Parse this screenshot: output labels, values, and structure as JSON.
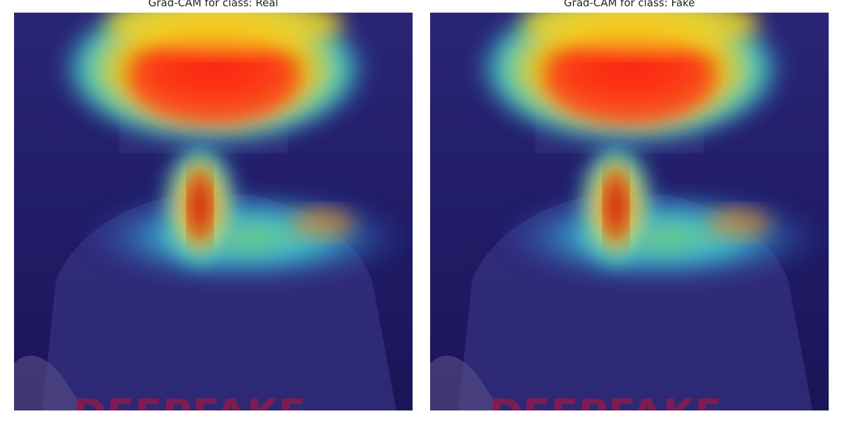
{
  "panels": [
    {
      "title": "Grad-CAM for class: Real",
      "class_label": "Real",
      "watermark": "DEEPFAKE"
    },
    {
      "title": "Grad-CAM for class: Fake",
      "class_label": "Fake",
      "watermark": "DEEPFAKE"
    }
  ],
  "colors": {
    "overlay_base": "#1b1660",
    "jet_low": "#1a1aa8",
    "jet_mid": "#45d2c2",
    "jet_high": "#e01e12",
    "watermark": "#8a1a4e"
  }
}
